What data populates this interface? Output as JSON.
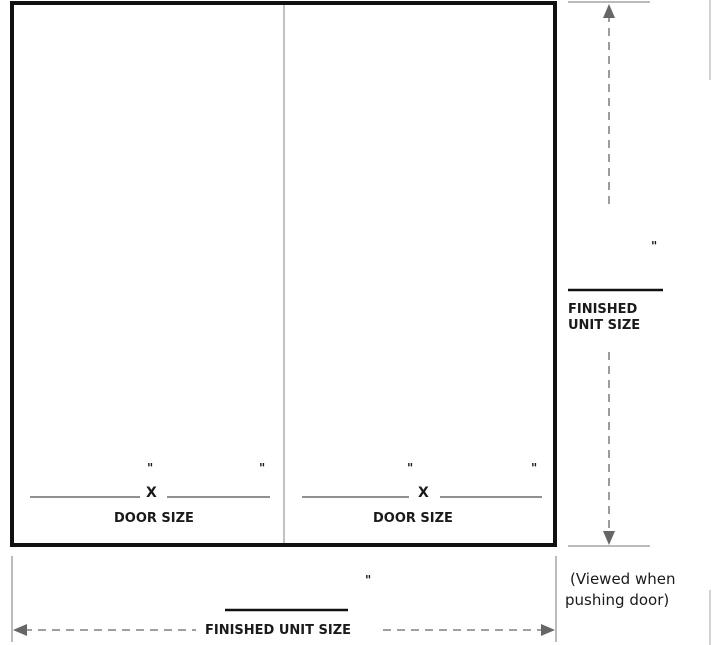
{
  "door_left": {
    "width_mark": "\"",
    "height_mark": "\"",
    "times": "X",
    "label": "DOOR SIZE"
  },
  "door_right": {
    "width_mark": "\"",
    "height_mark": "\"",
    "times": "X",
    "label": "DOOR SIZE"
  },
  "height_dimension": {
    "inch_mark": "\"",
    "label_line1": "FINISHED",
    "label_line2": "UNIT SIZE"
  },
  "width_dimension": {
    "inch_mark": "\"",
    "label": "FINISHED UNIT SIZE"
  },
  "view_note": {
    "line1": "(Viewed when",
    "line2": "pushing door)"
  },
  "colors": {
    "frame": "#111111",
    "divider": "#999999",
    "dimension": "#666666"
  }
}
